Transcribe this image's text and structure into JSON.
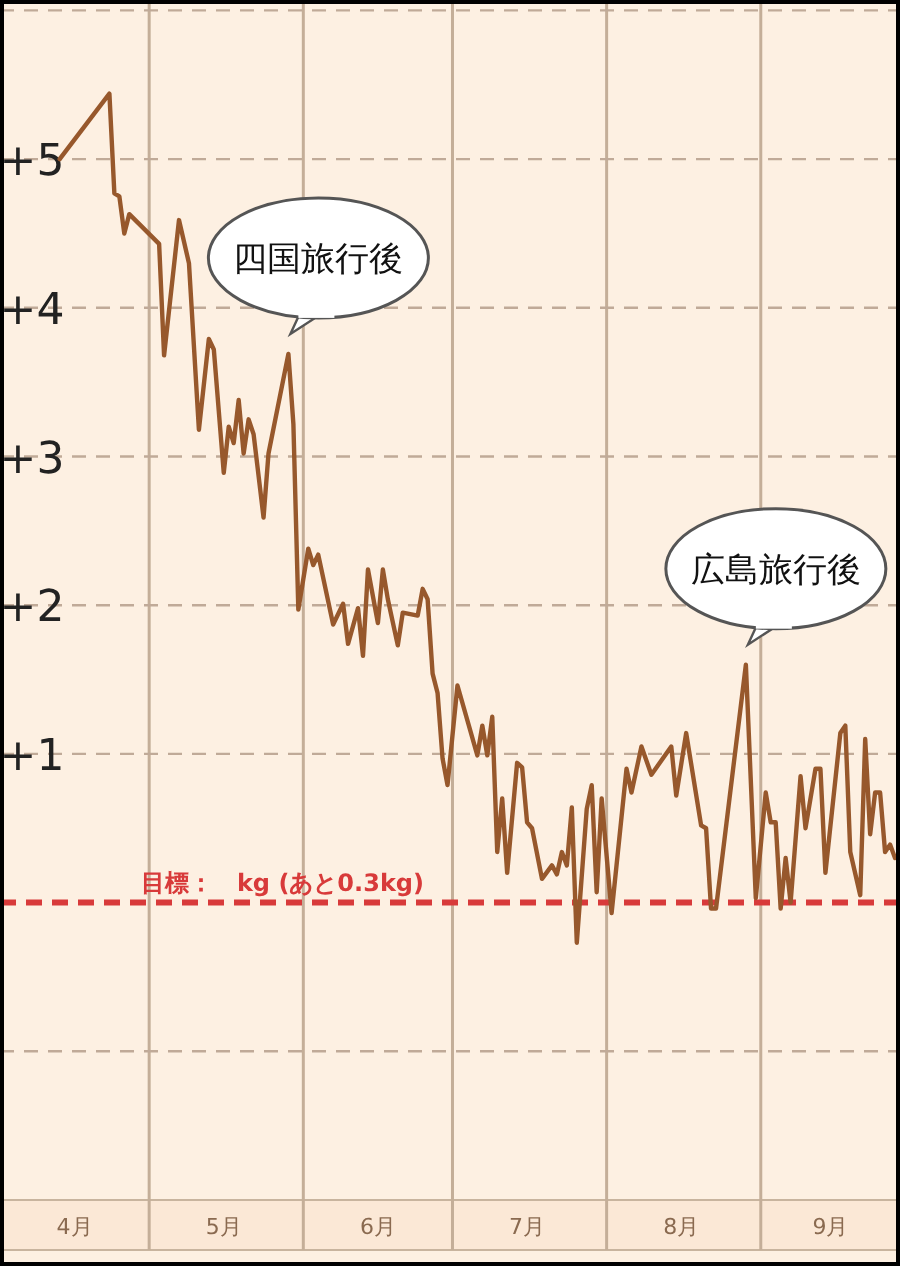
{
  "chart_data": {
    "type": "line",
    "x": [
      "--04-13",
      "--04-23",
      "--04-24",
      "--04-25",
      "--04-26",
      "--04-27",
      "--05-03",
      "--05-04",
      "--05-07",
      "--05-09",
      "--05-11",
      "--05-13",
      "--05-14",
      "--05-16",
      "--05-17",
      "--05-18",
      "--05-19",
      "--05-20",
      "--05-21",
      "--05-22",
      "--05-24",
      "--05-25",
      "--05-29",
      "--05-30",
      "--05-31",
      "--06-02",
      "--06-03",
      "--06-04",
      "--06-07",
      "--06-09",
      "--06-10",
      "--06-12",
      "--06-13",
      "--06-14",
      "--06-16",
      "--06-17",
      "--06-18",
      "--06-20",
      "--06-21",
      "--06-24",
      "--06-25",
      "--06-26",
      "--06-27",
      "--06-28",
      "--06-29",
      "--06-30",
      "--07-02",
      "--07-06",
      "--07-07",
      "--07-08",
      "--07-09",
      "--07-10",
      "--07-11",
      "--07-12",
      "--07-14",
      "--07-15",
      "--07-16",
      "--07-17",
      "--07-19",
      "--07-21",
      "--07-22",
      "--07-23",
      "--07-24",
      "--07-25",
      "--07-26",
      "--07-28",
      "--07-29",
      "--07-30",
      "--07-31",
      "--08-02",
      "--08-05",
      "--08-06",
      "--08-08",
      "--08-10",
      "--08-14",
      "--08-15",
      "--08-17",
      "--08-20",
      "--08-21",
      "--08-22",
      "--08-23",
      "--08-29",
      "--08-31",
      "--09-02",
      "--09-03",
      "--09-04",
      "--09-05",
      "--09-06",
      "--09-07",
      "--09-09",
      "--09-10",
      "--09-12",
      "--09-13",
      "--09-14",
      "--09-17",
      "--09-18",
      "--09-19",
      "--09-21",
      "--09-22",
      "--09-23",
      "--09-24",
      "--09-25",
      "--09-26",
      "--09-27",
      "--09-28"
    ],
    "series": [
      {
        "color": "#97582c",
        "values": [
          5.0,
          5.44,
          4.77,
          4.75,
          4.5,
          4.63,
          4.43,
          3.68,
          4.59,
          4.3,
          3.18,
          3.79,
          3.72,
          2.89,
          3.2,
          3.09,
          3.38,
          3.02,
          3.25,
          3.15,
          2.59,
          3.02,
          3.69,
          3.22,
          1.97,
          2.38,
          2.27,
          2.34,
          1.87,
          2.01,
          1.74,
          1.98,
          1.66,
          2.24,
          1.88,
          2.24,
          2.04,
          1.73,
          1.95,
          1.93,
          2.11,
          2.04,
          1.54,
          1.41,
          0.97,
          0.79,
          1.46,
          0.99,
          1.19,
          0.99,
          1.25,
          0.34,
          0.7,
          0.2,
          0.94,
          0.91,
          0.54,
          0.5,
          0.16,
          0.25,
          0.19,
          0.34,
          0.25,
          0.64,
          -0.27,
          0.63,
          0.79,
          0.07,
          0.7,
          -0.07,
          0.9,
          0.74,
          1.05,
          0.86,
          1.05,
          0.72,
          1.14,
          0.52,
          0.5,
          -0.04,
          -0.04,
          1.6,
          0.03,
          0.74,
          0.54,
          0.54,
          -0.04,
          0.3,
          0.0,
          0.85,
          0.5,
          0.9,
          0.9,
          0.2,
          1.14,
          1.19,
          0.34,
          0.05,
          1.1,
          0.46,
          0.74,
          0.74,
          0.34,
          0.39,
          0.3
        ]
      }
    ],
    "xlim": [
      "--04-01",
      "--09-29"
    ],
    "xticks": [
      {
        "value": "--04-16",
        "label": "4月"
      },
      {
        "value": "--05-01",
        "label": null
      },
      {
        "value": "--05-16",
        "label": "5月"
      },
      {
        "value": "--06-01",
        "label": null
      },
      {
        "value": "--06-16",
        "label": "6月"
      },
      {
        "value": "--07-01",
        "label": null
      },
      {
        "value": "--07-16",
        "label": "7月"
      },
      {
        "value": "--08-01",
        "label": null
      },
      {
        "value": "--08-16",
        "label": "8月"
      },
      {
        "value": "--09-01",
        "label": null
      },
      {
        "value": "--09-15",
        "label": "9月"
      }
    ],
    "ylim": [
      -2,
      6.07
    ],
    "yticks": [
      {
        "value": -1,
        "label": null
      },
      {
        "value": 1,
        "label": "+1"
      },
      {
        "value": 2,
        "label": "+2"
      },
      {
        "value": 3,
        "label": "+3"
      },
      {
        "value": 4,
        "label": "+4"
      },
      {
        "value": 5,
        "label": "+5"
      },
      {
        "value": 6,
        "label": null
      }
    ],
    "grid": true,
    "marker": "none",
    "line_style": "solid",
    "ref_lines": [
      {
        "axis": "y",
        "value": 0,
        "label": "目標：　kg (あと0.3kg)",
        "color": "#d83a3a",
        "line_style": "dashed"
      }
    ],
    "annotations": [
      {
        "text": "四国旅行後",
        "x": "--05-29",
        "y": 3.69
      },
      {
        "text": "広島旅行後",
        "x": "--08-29",
        "y": 1.6
      }
    ]
  }
}
